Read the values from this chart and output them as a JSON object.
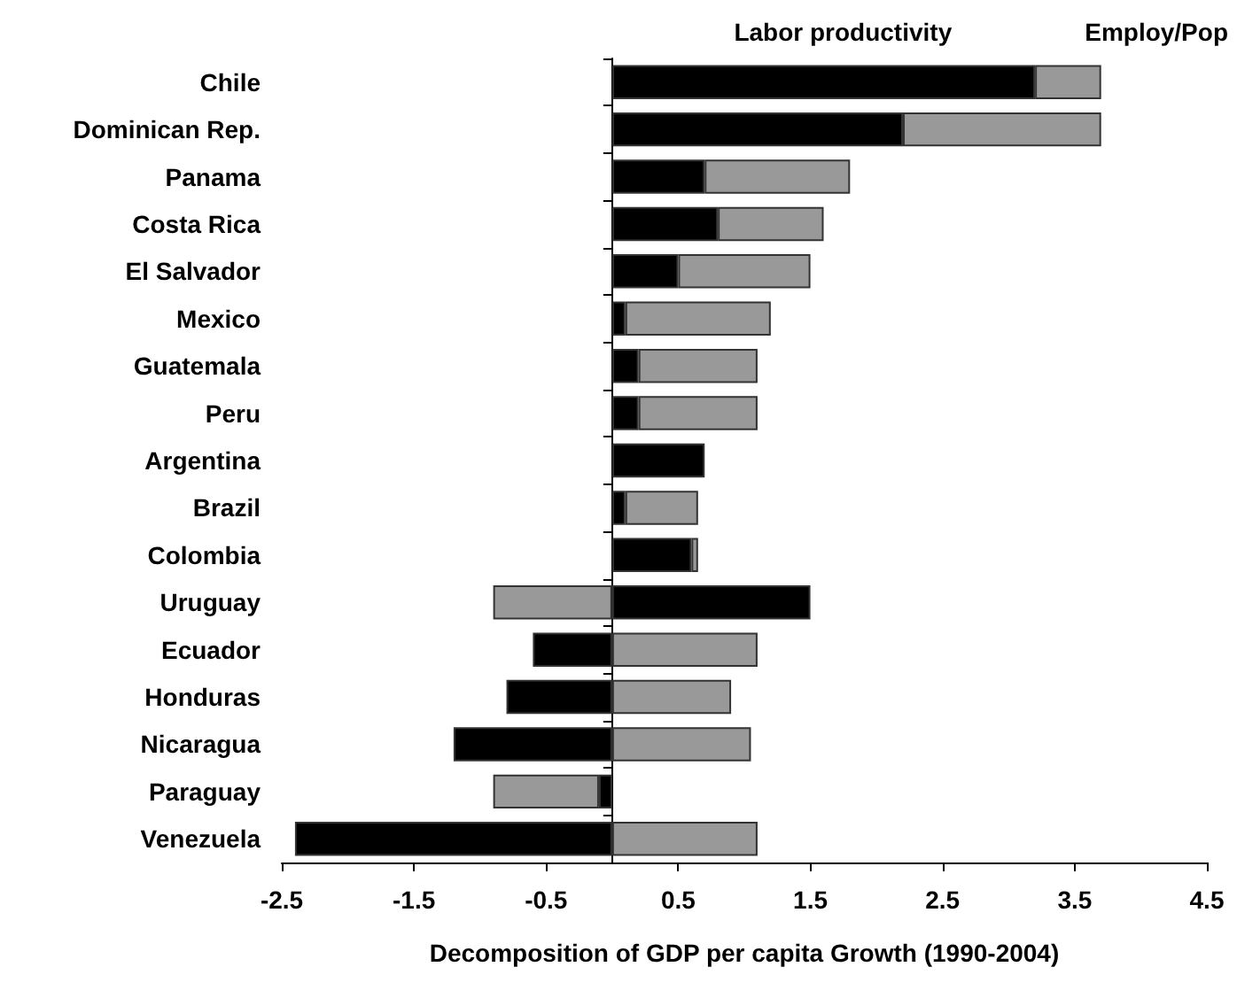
{
  "chart_data": {
    "type": "bar",
    "orientation": "horizontal",
    "stacked": true,
    "xlabel": "Decomposition of GDP per capita Growth (1990-2004)",
    "categories": [
      "Chile",
      "Dominican Rep.",
      "Panama",
      "Costa Rica",
      "El Salvador",
      "Mexico",
      "Guatemala",
      "Peru",
      "Argentina",
      "Brazil",
      "Colombia",
      "Uruguay",
      "Ecuador",
      "Honduras",
      "Nicaragua",
      "Paraguay",
      "Venezuela"
    ],
    "series": [
      {
        "name": "Labor productivity",
        "color": "#000000",
        "values": [
          3.2,
          2.2,
          0.7,
          0.8,
          0.5,
          0.1,
          0.2,
          0.2,
          0.7,
          0.1,
          0.6,
          1.5,
          -0.6,
          -0.8,
          -1.2,
          -0.1,
          -2.4
        ]
      },
      {
        "name": "Employ/Pop",
        "color": "#999999",
        "values": [
          0.5,
          1.5,
          1.1,
          0.8,
          1.0,
          1.1,
          0.9,
          0.9,
          0,
          0.55,
          0.05,
          -0.9,
          1.1,
          0.9,
          1.05,
          -0.8,
          1.1
        ]
      }
    ],
    "xlim": [
      -2.5,
      4.5
    ],
    "xticks": [
      -2.5,
      -1.5,
      -0.5,
      0.5,
      1.5,
      2.5,
      3.5,
      4.5
    ],
    "grid": false,
    "legend": "top right"
  }
}
